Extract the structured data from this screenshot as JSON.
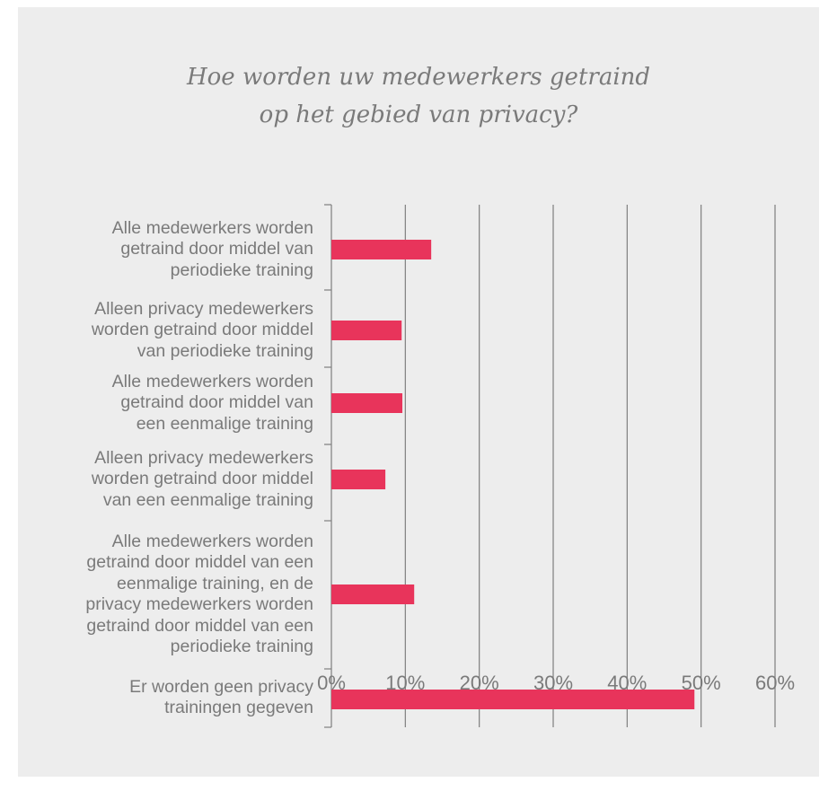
{
  "chart_data": {
    "type": "bar",
    "orientation": "horizontal",
    "title": [
      "Hoe worden uw medewerkers getraind",
      "op het gebied van privacy?"
    ],
    "categories": [
      [
        "Alle medewerkers worden",
        "getraind door middel van",
        "periodieke training"
      ],
      [
        "Alleen privacy medewerkers",
        "worden getraind door middel",
        "van periodieke training"
      ],
      [
        "Alle medewerkers worden",
        "getraind door middel van",
        "een eenmalige training"
      ],
      [
        "Alleen privacy medewerkers",
        "worden getraind door middel",
        "van een eenmalige training"
      ],
      [
        "Alle medewerkers worden",
        "getraind door middel van een",
        "eenmalige training, en de",
        "privacy medewerkers worden",
        "getraind door middel van een",
        "periodieke training"
      ],
      [
        "Er worden geen privacy",
        "trainingen gegeven"
      ]
    ],
    "values": [
      13.5,
      9.5,
      9.6,
      7.3,
      11.2,
      49.1
    ],
    "value_unit": "%",
    "xlim": [
      0,
      60
    ],
    "ticks": [
      "0%",
      "10%",
      "20%",
      "30%",
      "40%",
      "50%",
      "60%"
    ],
    "grid": "vertical",
    "bar_color": "#e8345b",
    "grid_color": "#7f7f7f",
    "background": "#ededed",
    "text_color": "#7a7a7a"
  }
}
